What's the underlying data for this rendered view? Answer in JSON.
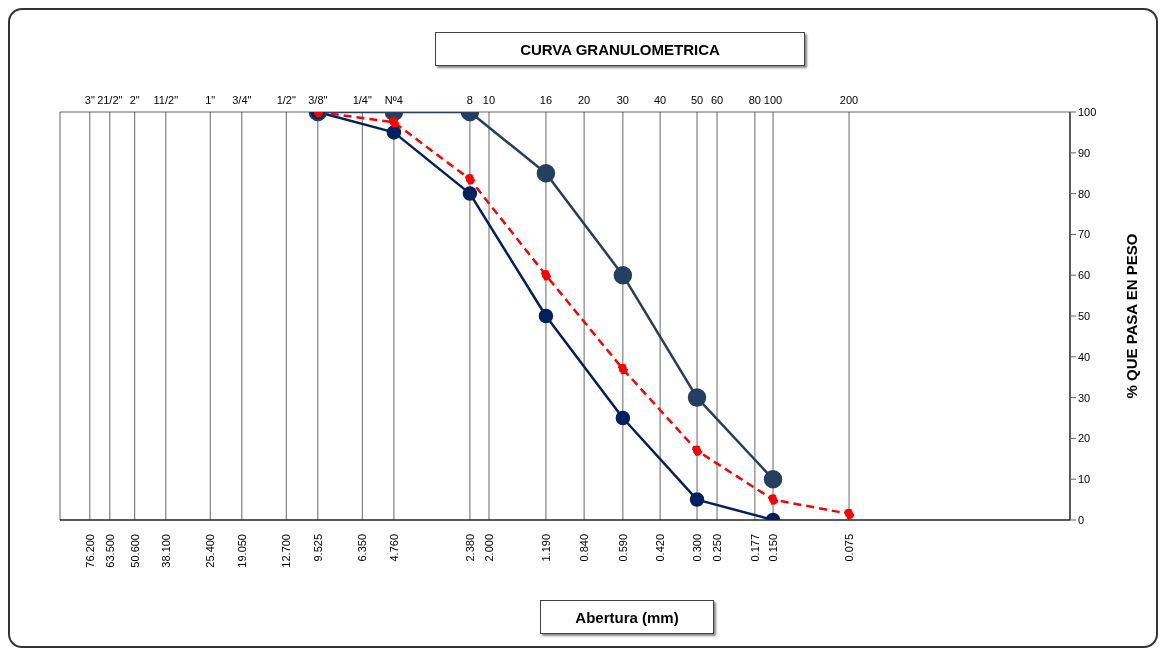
{
  "chart_data": {
    "type": "line",
    "title": "CURVA GRANULOMETRICA",
    "xlabel": "Abertura (mm)",
    "ylabel": "% QUE PASA EN PESO",
    "log": "x",
    "xlim": [
      100,
      0.01
    ],
    "xticks": [
      {
        "value": 76.2,
        "label": "76.200"
      },
      {
        "value": 63.5,
        "label": "63.500"
      },
      {
        "value": 50.6,
        "label": "50.600"
      },
      {
        "value": 38.1,
        "label": "38.100"
      },
      {
        "value": 25.4,
        "label": "25.400"
      },
      {
        "value": 19.05,
        "label": "19.050"
      },
      {
        "value": 12.7,
        "label": "12.700"
      },
      {
        "value": 9.525,
        "label": "9.525"
      },
      {
        "value": 6.35,
        "label": "6.350"
      },
      {
        "value": 4.76,
        "label": "4.760"
      },
      {
        "value": 2.38,
        "label": "2.380"
      },
      {
        "value": 2.0,
        "label": "2.000"
      },
      {
        "value": 1.19,
        "label": "1.190"
      },
      {
        "value": 0.84,
        "label": "0.840"
      },
      {
        "value": 0.59,
        "label": "0.590"
      },
      {
        "value": 0.42,
        "label": "0.420"
      },
      {
        "value": 0.3,
        "label": "0.300"
      },
      {
        "value": 0.25,
        "label": "0.250"
      },
      {
        "value": 0.177,
        "label": "0.177"
      },
      {
        "value": 0.15,
        "label": "0.150"
      },
      {
        "value": 0.075,
        "label": "0.075"
      }
    ],
    "annotations": [
      "3\"",
      "21/2\"",
      "2\"",
      "11/2\"",
      "1\"",
      "3/4\"",
      "1/2\"",
      "3/8\"",
      "1/4\"",
      "Nº4",
      "8",
      "10",
      "16",
      "20",
      "30",
      "40",
      "50",
      "60",
      "80",
      "100",
      "200"
    ],
    "ylim": [
      0,
      100
    ],
    "yticks": [
      0,
      10,
      20,
      30,
      40,
      50,
      60,
      70,
      80,
      90,
      100
    ],
    "grid": true,
    "legend": false,
    "marker": "circle",
    "line_style": "solid",
    "series": [
      {
        "color": "#243f60",
        "x": [
          9.525,
          4.76,
          2.38,
          1.19,
          0.59,
          0.3,
          0.15
        ],
        "values": [
          100,
          100,
          100,
          85,
          60,
          30,
          10
        ]
      },
      {
        "color": "#002060",
        "x": [
          9.525,
          4.76,
          2.38,
          1.19,
          0.59,
          0.3,
          0.15
        ],
        "values": [
          100,
          95,
          80,
          50,
          25,
          5,
          0
        ]
      },
      {
        "color": "#ff0000",
        "line_style": "dashed",
        "x": [
          9.525,
          4.76,
          2.38,
          1.19,
          0.59,
          0.3,
          0.15,
          0.075
        ],
        "values": [
          100,
          97.5,
          83.5,
          60,
          37,
          17,
          5,
          1.5
        ]
      }
    ]
  }
}
